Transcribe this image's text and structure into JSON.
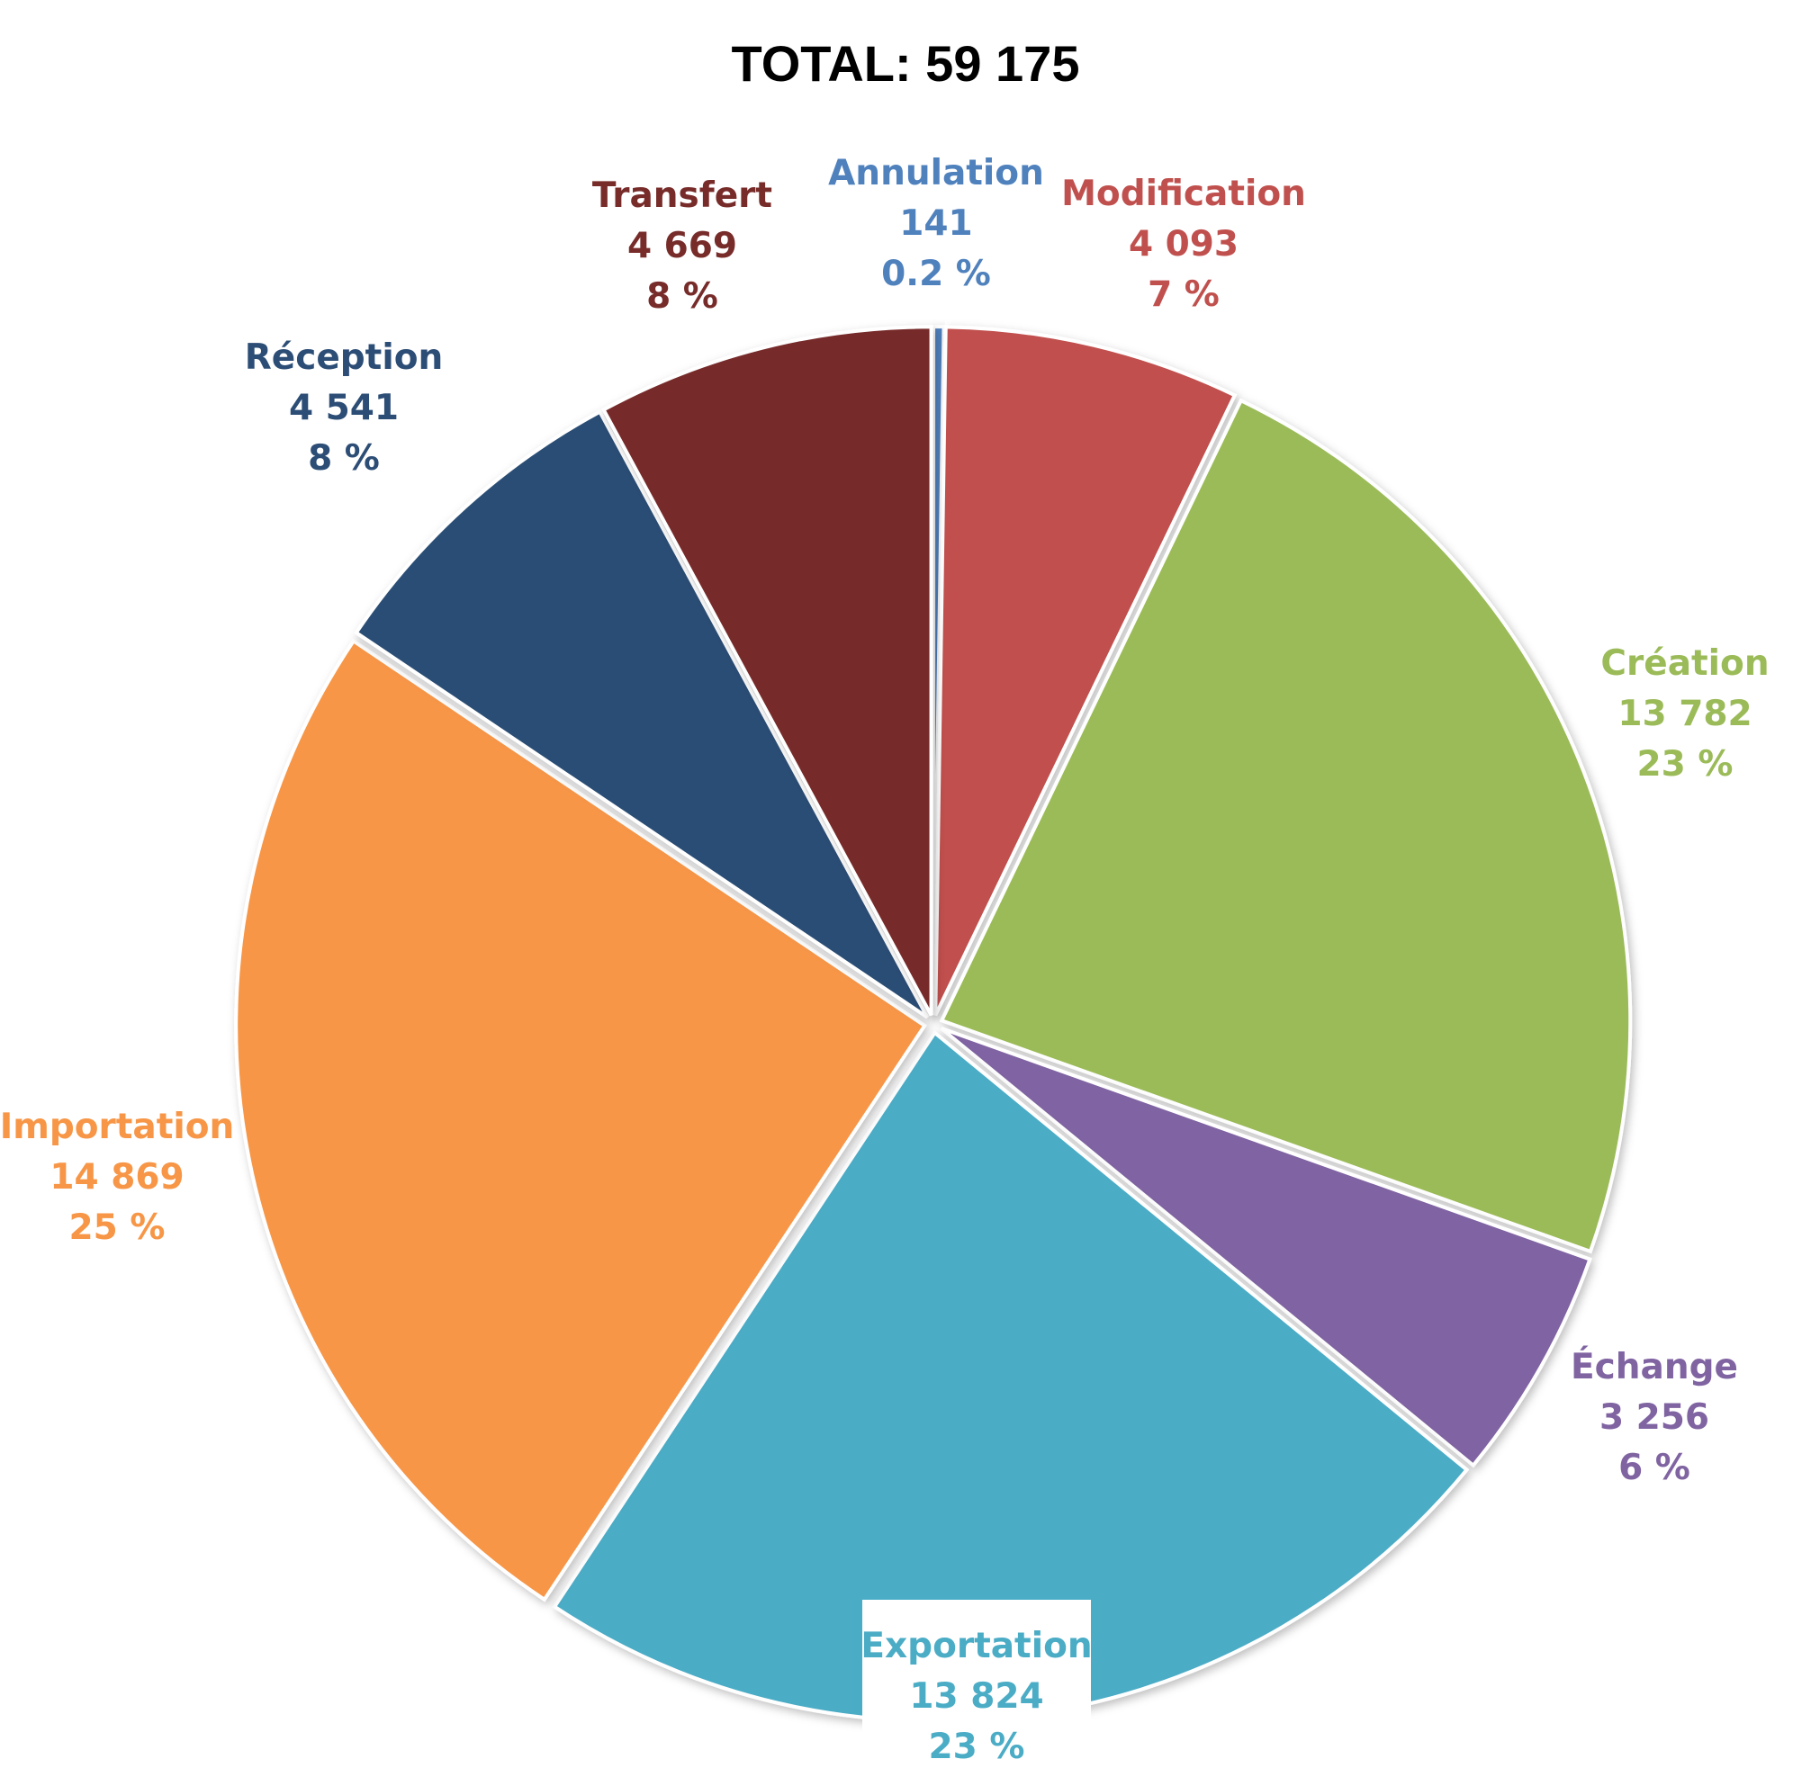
{
  "chart_data": {
    "type": "pie",
    "title": "TOTAL: 59 175",
    "legend": "none",
    "slices": [
      {
        "label": "Annulation",
        "value": 141,
        "value_label": "141",
        "percent_label": "0.2 %",
        "color": "#4F81BD"
      },
      {
        "label": "Modification",
        "value": 4093,
        "value_label": "4 093",
        "percent_label": "7 %",
        "color": "#C0504D"
      },
      {
        "label": "Création",
        "value": 13782,
        "value_label": "13 782",
        "percent_label": "23 %",
        "color": "#9BBB59"
      },
      {
        "label": "Échange",
        "value": 3256,
        "value_label": "3 256",
        "percent_label": "6 %",
        "color": "#8064A2"
      },
      {
        "label": "Exportation",
        "value": 13824,
        "value_label": "13 824",
        "percent_label": "23 %",
        "color": "#4BACC6"
      },
      {
        "label": "Importation",
        "value": 14869,
        "value_label": "14 869",
        "percent_label": "25 %",
        "color": "#F79646"
      },
      {
        "label": "Réception",
        "value": 4541,
        "value_label": "4 541",
        "percent_label": "8 %",
        "color": "#2C4D75"
      },
      {
        "label": "Transfert",
        "value": 4669,
        "value_label": "4 669",
        "percent_label": "8 %",
        "color": "#772C2A"
      }
    ]
  }
}
